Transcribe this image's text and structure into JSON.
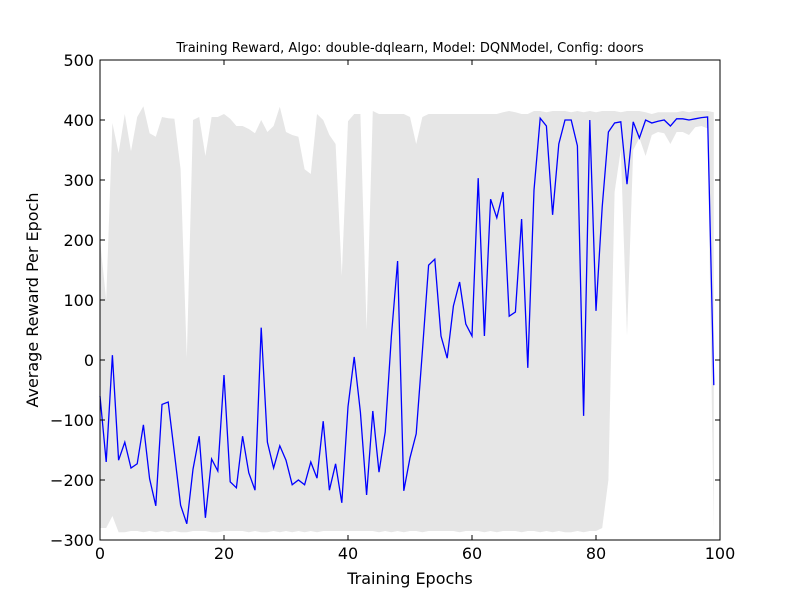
{
  "chart_data": {
    "type": "line",
    "title": "Training Reward, Algo: double-dqlearn, Model: DQNModel, Config: doors",
    "xlabel": "Training Epochs",
    "ylabel": "Average Reward Per Epoch",
    "xlim": [
      0,
      100
    ],
    "ylim": [
      -300,
      500
    ],
    "xticks": [
      0,
      20,
      40,
      60,
      80,
      100
    ],
    "yticks": [
      -300,
      -200,
      -100,
      0,
      100,
      200,
      300,
      400,
      500
    ],
    "grid": false,
    "legend": "none",
    "colors": {
      "line": "#0000ff",
      "band": "#e6e6e6",
      "axes": "#000000"
    },
    "series": [
      {
        "values": [
          -60,
          -170,
          8,
          -167,
          -137,
          -180,
          -173,
          -108,
          -198,
          -243,
          -74,
          -70,
          -155,
          -242,
          -273,
          -182,
          -127,
          -263,
          -165,
          -185,
          -25,
          -203,
          -213,
          -127,
          -188,
          -217,
          54,
          -137,
          -180,
          -143,
          -167,
          -208,
          -200,
          -208,
          -170,
          -197,
          -102,
          -217,
          -173,
          -238,
          -78,
          5,
          -87,
          -225,
          -85,
          -187,
          -120,
          40,
          165,
          -218,
          -163,
          -123,
          15,
          158,
          168,
          40,
          3,
          90,
          130,
          60,
          40,
          303,
          40,
          268,
          237,
          280,
          73,
          80,
          235,
          -13,
          283,
          403,
          390,
          242,
          360,
          400,
          400,
          357,
          -93,
          400,
          82,
          255,
          380,
          395,
          397,
          293,
          397,
          370,
          400,
          395,
          398,
          400,
          390,
          402,
          402,
          400,
          402,
          404,
          405,
          -42
        ]
      }
    ],
    "band": {
      "upper": [
        200,
        100,
        395,
        345,
        410,
        348,
        405,
        423,
        378,
        372,
        405,
        403,
        402,
        318,
        3,
        400,
        405,
        340,
        405,
        405,
        410,
        402,
        390,
        390,
        385,
        378,
        400,
        380,
        390,
        422,
        380,
        375,
        372,
        318,
        310,
        410,
        400,
        375,
        360,
        140,
        398,
        410,
        410,
        50,
        415,
        410,
        410,
        410,
        410,
        410,
        405,
        360,
        405,
        410,
        410,
        410,
        410,
        410,
        410,
        410,
        410,
        410,
        410,
        410,
        410,
        413,
        415,
        413,
        410,
        410,
        415,
        415,
        413,
        415,
        415,
        415,
        413,
        415,
        413,
        415,
        413,
        415,
        415,
        415,
        413,
        415,
        415,
        415,
        413,
        410,
        413,
        413,
        413,
        413,
        415,
        413,
        415,
        415,
        415,
        413
      ],
      "lower": [
        -280,
        -280,
        -260,
        -287,
        -287,
        -285,
        -285,
        -287,
        -285,
        -287,
        -285,
        -287,
        -285,
        -287,
        -287,
        -285,
        -285,
        -285,
        -287,
        -287,
        -285,
        -285,
        -285,
        -285,
        -287,
        -285,
        -287,
        -287,
        -285,
        -287,
        -285,
        -287,
        -285,
        -287,
        -285,
        -287,
        -285,
        -285,
        -285,
        -285,
        -285,
        -285,
        -285,
        -285,
        -285,
        -287,
        -285,
        -287,
        -285,
        -287,
        -285,
        -285,
        -287,
        -285,
        -285,
        -285,
        -285,
        -285,
        -287,
        -285,
        -285,
        -285,
        -287,
        -285,
        -287,
        -285,
        -285,
        -285,
        -287,
        -285,
        -285,
        -287,
        -285,
        -287,
        -285,
        -287,
        -287,
        -285,
        -287,
        -285,
        -285,
        -280,
        -200,
        280,
        350,
        40,
        350,
        370,
        340,
        375,
        380,
        378,
        360,
        380,
        380,
        375,
        388,
        390,
        386,
        -285
      ]
    }
  }
}
